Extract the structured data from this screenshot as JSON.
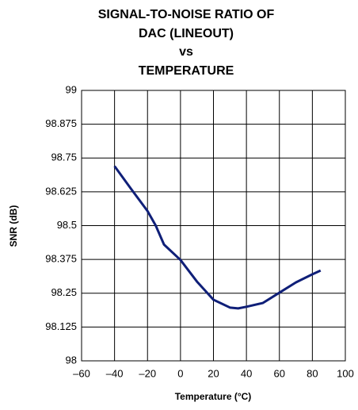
{
  "chart_data": {
    "type": "line",
    "title": [
      "SIGNAL-TO-NOISE RATIO OF",
      "DAC (LINEOUT)",
      "vs",
      "TEMPERATURE"
    ],
    "xlabel": "Temperature (°C)",
    "ylabel": "SNR (dB)",
    "x": [
      -40,
      -30,
      -20,
      -15,
      -10,
      0,
      10,
      20,
      30,
      35,
      40,
      50,
      60,
      70,
      80,
      85
    ],
    "series": [
      {
        "name": "SNR",
        "color": "#0f1f78",
        "values": [
          98.72,
          98.636,
          98.554,
          98.5,
          98.43,
          98.373,
          98.293,
          98.226,
          98.197,
          98.194,
          98.2,
          98.214,
          98.252,
          98.29,
          98.32,
          98.334
        ]
      }
    ],
    "xlim": [
      -60,
      100
    ],
    "xticks": [
      {
        "value": -60,
        "label": "–60"
      },
      {
        "value": -40,
        "label": "–40"
      },
      {
        "value": -20,
        "label": "–20"
      },
      0,
      20,
      40,
      60,
      80,
      100
    ],
    "ylim": [
      98,
      99
    ],
    "yticks": [
      98,
      98.125,
      98.25,
      98.375,
      98.5,
      98.625,
      98.75,
      98.875,
      99
    ],
    "grid": true
  }
}
